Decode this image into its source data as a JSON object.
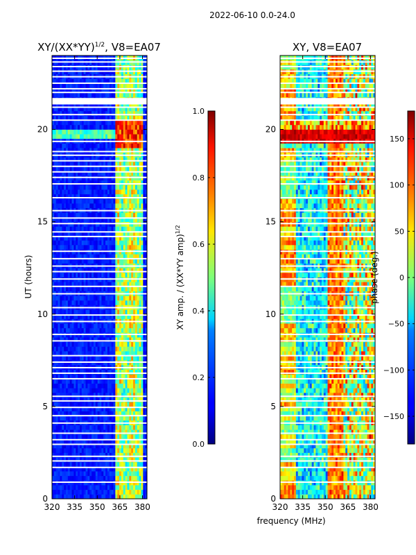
{
  "figure_title": "2022-06-10 0.0-24.0",
  "chart_data": [
    {
      "type": "heatmap",
      "title": "XY/(XX*YY)^1/2, V8=EA07",
      "title_main": "XY/(XX*YY)",
      "title_sup": "1/2",
      "title_tail": ", V8=EA07",
      "xlabel": "",
      "ylabel": "UT (hours)",
      "xlim": [
        320,
        383
      ],
      "ylim": [
        0,
        24
      ],
      "xticks": [
        320,
        335,
        350,
        365,
        380
      ],
      "yticks": [
        0,
        5,
        10,
        15,
        20
      ],
      "colorbar": {
        "label": "XY amp. / (XX*YY amp)^1/2",
        "label_main": "XY amp. / (XX*YY amp)",
        "label_sup": "1/2",
        "range": [
          0.0,
          1.0
        ],
        "ticks": [
          "0.0",
          "0.2",
          "0.4",
          "0.6",
          "0.8",
          "1.0"
        ],
        "tick_values": [
          0.0,
          0.2,
          0.4,
          0.6,
          0.8,
          1.0
        ],
        "colormap": "jet"
      }
    },
    {
      "type": "heatmap",
      "title": "XY, V8=EA07",
      "xlabel": "frequency (MHz)",
      "ylabel": "",
      "xlim": [
        320,
        383
      ],
      "ylim": [
        0,
        24
      ],
      "xticks": [
        320,
        335,
        350,
        365,
        380
      ],
      "yticks": [
        0,
        5,
        10,
        15,
        20
      ],
      "colorbar": {
        "label": "phase (deg.)",
        "range": [
          -180,
          180
        ],
        "ticks": [
          "150",
          "100",
          "50",
          "0",
          "−50",
          "−100",
          "−150"
        ],
        "tick_values": [
          150,
          100,
          50,
          0,
          -50,
          -100,
          -150
        ],
        "colormap": "jet"
      }
    }
  ],
  "flagged_hours": [
    0.9,
    1.7,
    2.05,
    2.3,
    2.95,
    3.2,
    3.55,
    4.1,
    4.5,
    4.95,
    5.3,
    5.55,
    6.5,
    6.8,
    7.1,
    7.4,
    7.75,
    8.55,
    8.9,
    9.6,
    9.95,
    10.35,
    11.1,
    11.5,
    11.9,
    12.3,
    12.6,
    13.0,
    13.4,
    14.2,
    14.45,
    14.9,
    15.2,
    15.6,
    16.3,
    17.05,
    17.4,
    17.7,
    18.0,
    18.3,
    18.6,
    18.8,
    19.35,
    20.5,
    20.8,
    21.2,
    22.0,
    22.2,
    22.5,
    22.85,
    23.15,
    23.4,
    23.65,
    23.85
  ],
  "flagged_bands": [
    [
      21.35,
      21.7
    ]
  ]
}
